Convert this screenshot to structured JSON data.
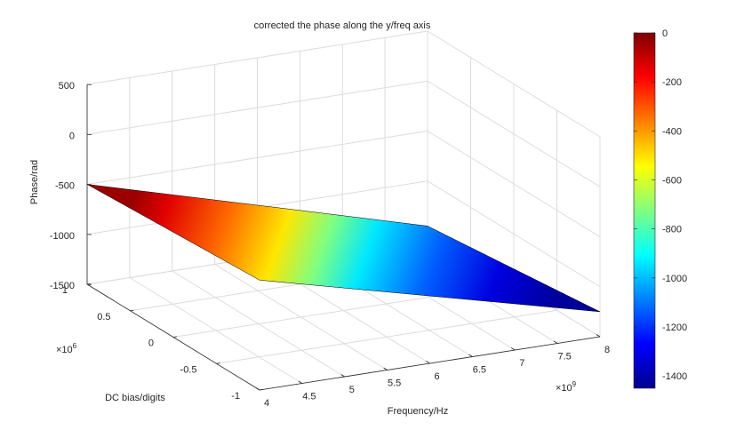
{
  "chart_data": {
    "type": "surface",
    "title": "corrected the phase along the y/freq axis",
    "xlabel": "Frequency/Hz",
    "ylabel": "DC bias/digits",
    "zlabel": "Phase/rad",
    "x_exponent": "×10",
    "x_exponent_power": "9",
    "y_exponent": "×10",
    "y_exponent_power": "6",
    "xlim": [
      4000000000,
      8000000000
    ],
    "ylim": [
      -1000000,
      1000000
    ],
    "zlim": [
      -1500,
      500
    ],
    "x_ticks": [
      "4",
      "4.5",
      "5",
      "5.5",
      "6",
      "6.5",
      "7",
      "7.5",
      "8"
    ],
    "y_ticks": [
      "-1",
      "-0.5",
      "0",
      "0.5",
      "1"
    ],
    "z_ticks": [
      "500",
      "0",
      "-500",
      "-1000",
      "-1500"
    ],
    "colorbar_ticks": [
      "0",
      "-200",
      "-400",
      "-600",
      "-800",
      "-1000",
      "-1200",
      "-1400"
    ],
    "colorbar_range": [
      -1450,
      0
    ],
    "colormap": "jet",
    "grid": true,
    "colorbar_position": "right",
    "surface": {
      "x": [
        4000000000,
        8000000000
      ],
      "y": [
        -1000000,
        1000000
      ],
      "z": [
        [
          -400,
          -1250
        ],
        [
          -500,
          -1450
        ]
      ]
    }
  }
}
